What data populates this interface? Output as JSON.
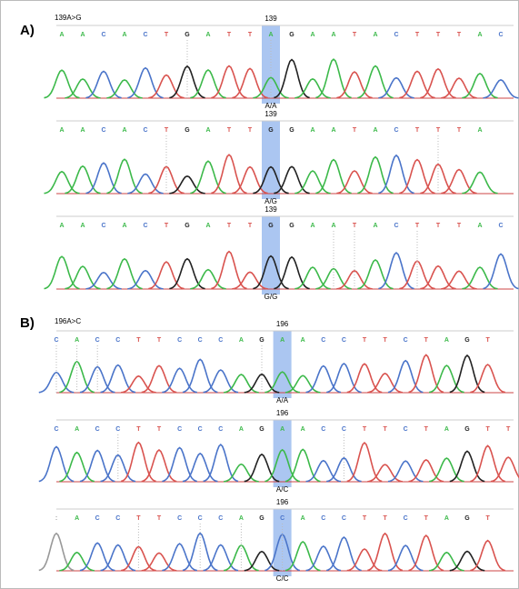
{
  "panels": [
    {
      "label": "A)",
      "title": "139A>G",
      "tracks": [
        {
          "position": "139",
          "bases": [
            "A",
            "A",
            "C",
            "A",
            "C",
            "T",
            "G",
            "A",
            "T",
            "T",
            "A",
            "G",
            "A",
            "A",
            "T",
            "A",
            "C",
            "T",
            "T",
            "T",
            "A",
            "C"
          ],
          "genotype": "A/A"
        },
        {
          "position": "139",
          "bases": [
            "A",
            "A",
            "C",
            "A",
            "C",
            "T",
            "G",
            "A",
            "T",
            "T",
            "G",
            "G",
            "A",
            "A",
            "T",
            "A",
            "C",
            "T",
            "T",
            "T",
            "A"
          ],
          "genotype": "A/G"
        },
        {
          "position": "139",
          "bases": [
            "A",
            "A",
            "C",
            "A",
            "C",
            "T",
            "G",
            "A",
            "T",
            "T",
            "G",
            "G",
            "A",
            "A",
            "T",
            "A",
            "C",
            "T",
            "T",
            "T",
            "A",
            "C"
          ],
          "genotype": "G/G"
        }
      ]
    },
    {
      "label": "B)",
      "title": "196A>C",
      "tracks": [
        {
          "position": "196",
          "bases": [
            "C",
            "A",
            "C",
            "C",
            "T",
            "T",
            "C",
            "C",
            "C",
            "A",
            "G",
            "A",
            "A",
            "C",
            "C",
            "T",
            "T",
            "C",
            "T",
            "A",
            "G",
            "T"
          ],
          "genotype": "A/A"
        },
        {
          "position": "196",
          "bases": [
            "C",
            "A",
            "C",
            "C",
            "T",
            "T",
            "C",
            "C",
            "C",
            "A",
            "G",
            "A",
            "A",
            "C",
            "C",
            "T",
            "T",
            "C",
            "T",
            "A",
            "G",
            "T",
            "T"
          ],
          "genotype": "A/C"
        },
        {
          "position": "196",
          "bases": [
            ":",
            "A",
            "C",
            "C",
            "T",
            "T",
            "C",
            "C",
            "C",
            "A",
            "G",
            "C",
            "A",
            "C",
            "C",
            "T",
            "T",
            "C",
            "T",
            "A",
            "G",
            "T"
          ],
          "genotype": "C/C"
        }
      ]
    }
  ]
}
